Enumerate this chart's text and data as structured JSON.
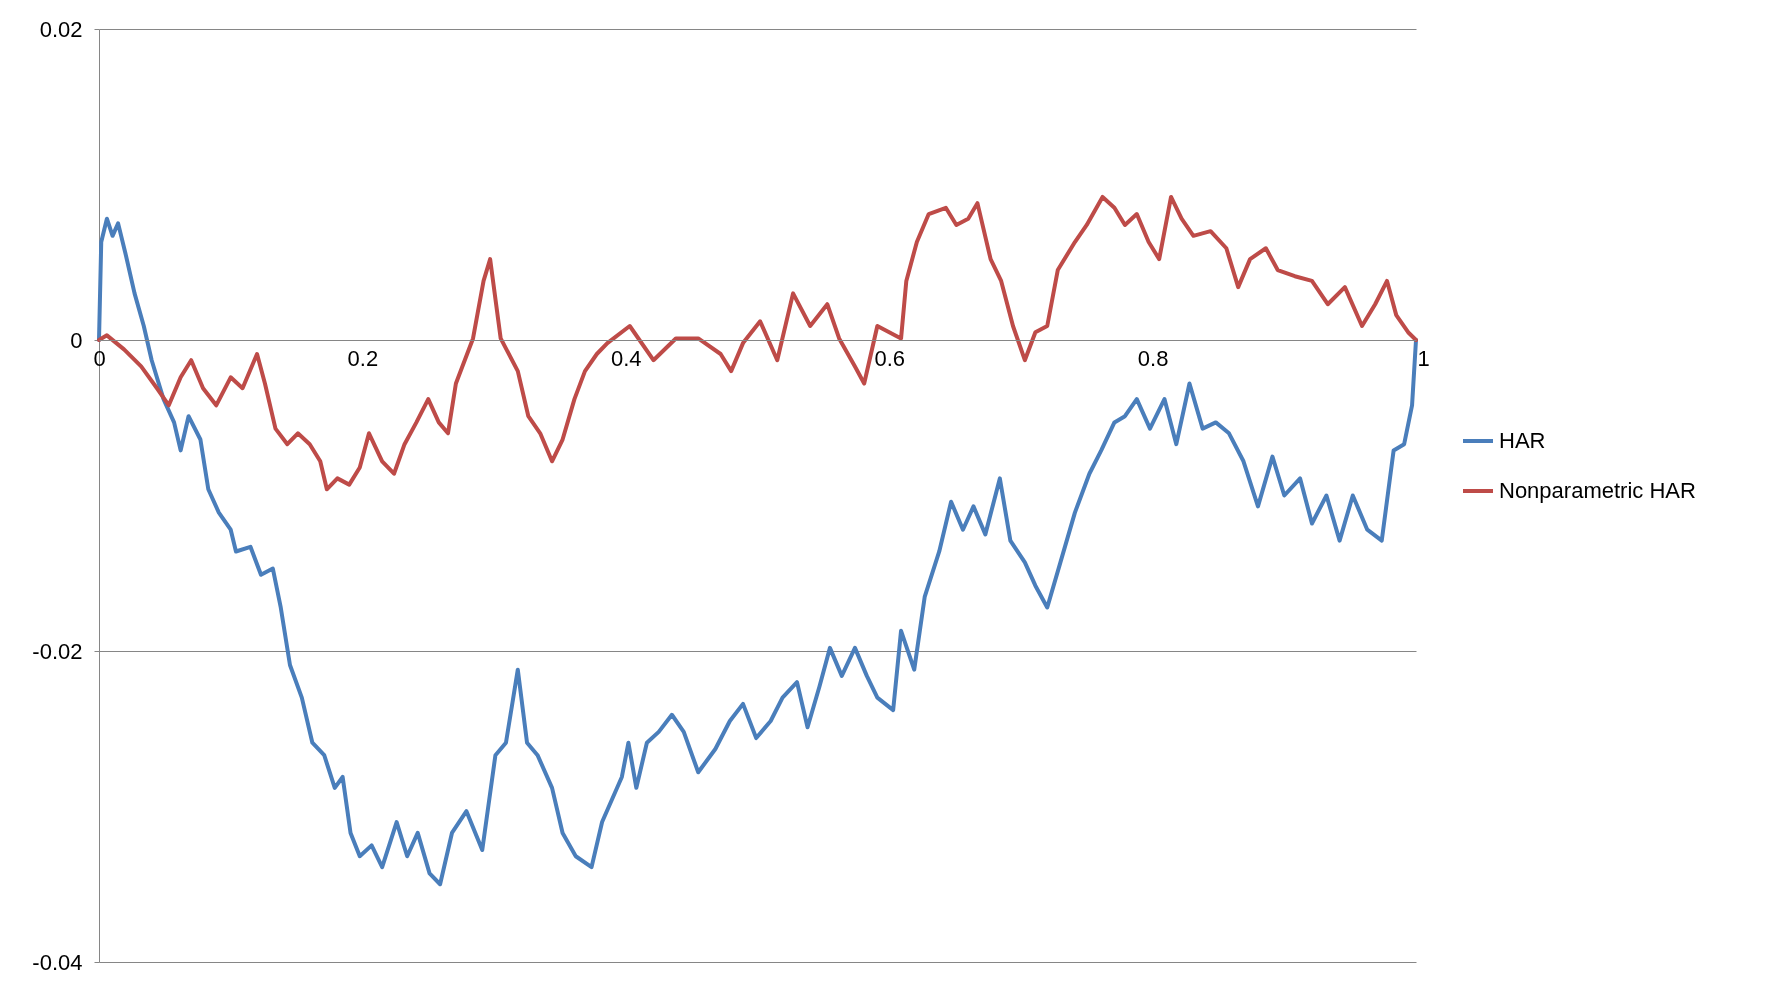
{
  "chart_data": {
    "type": "line",
    "xlim": [
      0,
      1
    ],
    "ylim": [
      -0.04,
      0.02
    ],
    "xticks": [
      0,
      0.2,
      0.4,
      0.6,
      0.8,
      1
    ],
    "yticks": [
      -0.04,
      -0.02,
      0,
      0.02
    ],
    "grid": "y",
    "legend": "right",
    "series": [
      {
        "name": "HAR",
        "color": "#4a7ebb",
        "x": [
          0,
          0.0017,
          0.006,
          0.0103,
          0.0145,
          0.02,
          0.027,
          0.034,
          0.04,
          0.049,
          0.057,
          0.062,
          0.068,
          0.077,
          0.083,
          0.091,
          0.1,
          0.104,
          0.115,
          0.123,
          0.132,
          0.138,
          0.145,
          0.154,
          0.162,
          0.171,
          0.179,
          0.185,
          0.191,
          0.198,
          0.207,
          0.215,
          0.226,
          0.234,
          0.242,
          0.251,
          0.259,
          0.268,
          0.279,
          0.291,
          0.301,
          0.309,
          0.318,
          0.325,
          0.333,
          0.344,
          0.352,
          0.362,
          0.374,
          0.382,
          0.397,
          0.402,
          0.408,
          0.416,
          0.425,
          0.435,
          0.444,
          0.455,
          0.468,
          0.479,
          0.489,
          0.499,
          0.51,
          0.519,
          0.53,
          0.538,
          0.547,
          0.555,
          0.564,
          0.574,
          0.583,
          0.591,
          0.603,
          0.609,
          0.619,
          0.627,
          0.638,
          0.647,
          0.656,
          0.664,
          0.673,
          0.684,
          0.692,
          0.703,
          0.711,
          0.72,
          0.73,
          0.741,
          0.752,
          0.761,
          0.771,
          0.779,
          0.788,
          0.798,
          0.809,
          0.818,
          0.828,
          0.838,
          0.848,
          0.858,
          0.869,
          0.88,
          0.891,
          0.9,
          0.912,
          0.921,
          0.932,
          0.942,
          0.952,
          0.963,
          0.974,
          0.983,
          0.991,
          0.997,
          1
        ],
        "values": [
          0,
          0.0063,
          0.0078,
          0.0067,
          0.0075,
          0.0056,
          0.003,
          0.0009,
          -0.0013,
          -0.0038,
          -0.0053,
          -0.0071,
          -0.0049,
          -0.0064,
          -0.0096,
          -0.0111,
          -0.0122,
          -0.0136,
          -0.0133,
          -0.0151,
          -0.0147,
          -0.0172,
          -0.0209,
          -0.023,
          -0.0259,
          -0.0267,
          -0.0288,
          -0.0281,
          -0.0317,
          -0.0332,
          -0.0325,
          -0.0339,
          -0.031,
          -0.0332,
          -0.0317,
          -0.0343,
          -0.035,
          -0.0317,
          -0.0303,
          -0.0328,
          -0.0267,
          -0.0259,
          -0.0212,
          -0.0259,
          -0.0267,
          -0.0288,
          -0.0317,
          -0.0332,
          -0.0339,
          -0.031,
          -0.0281,
          -0.0259,
          -0.0288,
          -0.0259,
          -0.0252,
          -0.0241,
          -0.0252,
          -0.0278,
          -0.0263,
          -0.0245,
          -0.0234,
          -0.0256,
          -0.0245,
          -0.023,
          -0.022,
          -0.0249,
          -0.0223,
          -0.0198,
          -0.0216,
          -0.0198,
          -0.0216,
          -0.023,
          -0.0238,
          -0.0187,
          -0.0212,
          -0.0165,
          -0.0136,
          -0.0104,
          -0.0122,
          -0.0107,
          -0.0125,
          -0.0089,
          -0.0129,
          -0.0143,
          -0.0158,
          -0.0172,
          -0.0143,
          -0.0111,
          -0.0086,
          -0.0071,
          -0.0053,
          -0.0049,
          -0.0038,
          -0.0057,
          -0.0038,
          -0.0067,
          -0.0028,
          -0.0057,
          -0.0053,
          -0.006,
          -0.0078,
          -0.0107,
          -0.0075,
          -0.01,
          -0.0089,
          -0.0118,
          -0.01,
          -0.0129,
          -0.01,
          -0.0122,
          -0.0129,
          -0.0071,
          -0.0067,
          -0.0042,
          0
        ]
      },
      {
        "name": "Nonparametric HAR",
        "color": "#be4b48",
        "x": [
          0,
          0.006,
          0.019,
          0.032,
          0.044,
          0.053,
          0.062,
          0.07,
          0.079,
          0.089,
          0.1,
          0.109,
          0.12,
          0.126,
          0.134,
          0.143,
          0.151,
          0.16,
          0.168,
          0.173,
          0.181,
          0.19,
          0.198,
          0.205,
          0.215,
          0.224,
          0.232,
          0.241,
          0.25,
          0.258,
          0.265,
          0.271,
          0.284,
          0.292,
          0.297,
          0.305,
          0.318,
          0.326,
          0.335,
          0.344,
          0.352,
          0.361,
          0.369,
          0.378,
          0.386,
          0.403,
          0.421,
          0.438,
          0.455,
          0.472,
          0.48,
          0.489,
          0.502,
          0.515,
          0.527,
          0.54,
          0.553,
          0.562,
          0.574,
          0.581,
          0.591,
          0.609,
          0.613,
          0.621,
          0.63,
          0.643,
          0.651,
          0.66,
          0.667,
          0.677,
          0.685,
          0.694,
          0.703,
          0.711,
          0.72,
          0.728,
          0.741,
          0.75,
          0.762,
          0.771,
          0.779,
          0.788,
          0.797,
          0.805,
          0.814,
          0.822,
          0.831,
          0.844,
          0.856,
          0.865,
          0.874,
          0.886,
          0.895,
          0.908,
          0.921,
          0.933,
          0.946,
          0.959,
          0.969,
          0.978,
          0.985,
          0.994,
          1
        ],
        "values": [
          0,
          0.0003,
          -0.0006,
          -0.0017,
          -0.0031,
          -0.0042,
          -0.0024,
          -0.0013,
          -0.0031,
          -0.0042,
          -0.0024,
          -0.0031,
          -0.0009,
          -0.0028,
          -0.0057,
          -0.0067,
          -0.006,
          -0.0067,
          -0.0078,
          -0.0096,
          -0.0089,
          -0.0093,
          -0.0082,
          -0.006,
          -0.0078,
          -0.0086,
          -0.0067,
          -0.0053,
          -0.0038,
          -0.0053,
          -0.006,
          -0.0028,
          0.0001,
          0.0038,
          0.0052,
          0.0001,
          -0.002,
          -0.0049,
          -0.006,
          -0.0078,
          -0.0064,
          -0.0038,
          -0.002,
          -0.0009,
          -0.0002,
          0.0009,
          -0.0013,
          0.0001,
          0.0001,
          -0.0009,
          -0.002,
          -0.0002,
          0.0012,
          -0.0013,
          0.003,
          0.0009,
          0.0023,
          0.0001,
          -0.0017,
          -0.0028,
          0.0009,
          0.0001,
          0.0038,
          0.0063,
          0.0081,
          0.0085,
          0.0074,
          0.0078,
          0.0088,
          0.0052,
          0.0038,
          0.0009,
          -0.0013,
          0.0005,
          0.0009,
          0.0045,
          0.0063,
          0.0074,
          0.0092,
          0.0085,
          0.0074,
          0.0081,
          0.0063,
          0.0052,
          0.0092,
          0.0078,
          0.0067,
          0.007,
          0.0059,
          0.0034,
          0.0052,
          0.0059,
          0.0045,
          0.0041,
          0.0038,
          0.0023,
          0.0034,
          0.0009,
          0.0023,
          0.0038,
          0.0016,
          0.0005,
          0
        ]
      }
    ]
  }
}
